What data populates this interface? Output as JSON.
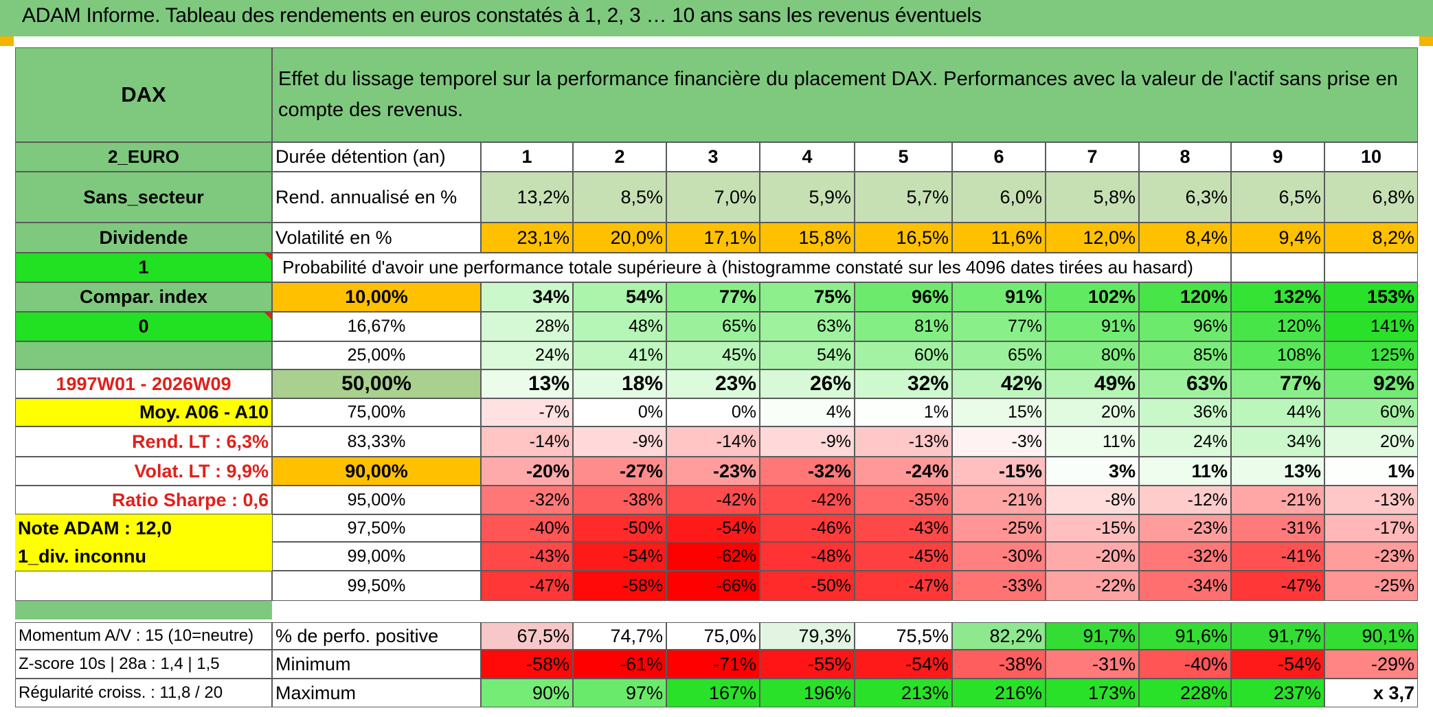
{
  "title": "ADAM Informe. Tableau des rendements en euros constatés à 1, 2, 3 … 10 ans sans les revenus éventuels",
  "description": "Effet du lissage temporel sur la performance financière du placement DAX. Performances avec la valeur de l'actif sans prise en compte des revenus.",
  "left": {
    "name": "DAX",
    "currency": "2_EURO",
    "sector": "Sans_secteur",
    "dividend_label": "Dividende",
    "dividend_flag": "1",
    "compar_label": "Compar. index",
    "compar_flag": "0",
    "period": "1997W01 - 2026W09",
    "moy": "Moy. A06 - A10",
    "rend_lt": "Rend. LT :   6,3%",
    "volat_lt": "Volat. LT :   9,9%",
    "sharpe": "Ratio Sharpe :   0,6",
    "note": "Note ADAM : 12,0",
    "div_note": "1_div. inconnu",
    "momentum": "Momentum A/V : 15 (10=neutre)",
    "zscore": "Z-score 10s | 28a : 1,4 | 1,5",
    "regularite": "Régularité croiss. : 11,8 / 20"
  },
  "header": {
    "duree_label": "Durée détention (an)",
    "years": [
      "1",
      "2",
      "3",
      "4",
      "5",
      "6",
      "7",
      "8",
      "9",
      "10"
    ],
    "rend_label": "Rend. annualisé en %",
    "rend": [
      "13,2%",
      "8,5%",
      "7,0%",
      "5,9%",
      "5,7%",
      "6,0%",
      "5,8%",
      "6,3%",
      "6,5%",
      "6,8%"
    ],
    "vol_label": "Volatilité en %",
    "vol": [
      "23,1%",
      "20,0%",
      "17,1%",
      "15,8%",
      "16,5%",
      "11,6%",
      "12,0%",
      "8,4%",
      "9,4%",
      "8,2%"
    ],
    "proba_label": "Probabilité d'avoir une performance totale supérieure à (histogramme constaté sur les 4096 dates tirées au hasard)"
  },
  "quantile_rows": [
    {
      "q": "10,00%",
      "v": [
        "34%",
        "54%",
        "77%",
        "75%",
        "96%",
        "91%",
        "102%",
        "120%",
        "132%",
        "153%"
      ]
    },
    {
      "q": "16,67%",
      "v": [
        "28%",
        "48%",
        "65%",
        "63%",
        "81%",
        "77%",
        "91%",
        "96%",
        "120%",
        "141%"
      ]
    },
    {
      "q": "25,00%",
      "v": [
        "24%",
        "41%",
        "45%",
        "54%",
        "60%",
        "65%",
        "80%",
        "85%",
        "108%",
        "125%"
      ]
    },
    {
      "q": "50,00%",
      "v": [
        "13%",
        "18%",
        "23%",
        "26%",
        "32%",
        "42%",
        "49%",
        "63%",
        "77%",
        "92%"
      ]
    },
    {
      "q": "75,00%",
      "v": [
        "-7%",
        "0%",
        "0%",
        "4%",
        "1%",
        "15%",
        "20%",
        "36%",
        "44%",
        "60%"
      ]
    },
    {
      "q": "83,33%",
      "v": [
        "-14%",
        "-9%",
        "-14%",
        "-9%",
        "-13%",
        "-3%",
        "11%",
        "24%",
        "34%",
        "20%"
      ]
    },
    {
      "q": "90,00%",
      "v": [
        "-20%",
        "-27%",
        "-23%",
        "-32%",
        "-24%",
        "-15%",
        "3%",
        "11%",
        "13%",
        "1%"
      ]
    },
    {
      "q": "95,00%",
      "v": [
        "-32%",
        "-38%",
        "-42%",
        "-42%",
        "-35%",
        "-21%",
        "-8%",
        "-12%",
        "-21%",
        "-13%"
      ]
    },
    {
      "q": "97,50%",
      "v": [
        "-40%",
        "-50%",
        "-54%",
        "-46%",
        "-43%",
        "-25%",
        "-15%",
        "-23%",
        "-31%",
        "-17%"
      ]
    },
    {
      "q": "99,00%",
      "v": [
        "-43%",
        "-54%",
        "-62%",
        "-48%",
        "-45%",
        "-30%",
        "-20%",
        "-32%",
        "-41%",
        "-23%"
      ]
    },
    {
      "q": "99,50%",
      "v": [
        "-47%",
        "-58%",
        "-66%",
        "-50%",
        "-47%",
        "-33%",
        "-22%",
        "-34%",
        "-47%",
        "-25%"
      ]
    }
  ],
  "bottom": {
    "pos_label": "% de perfo. positive",
    "pos": [
      "67,5%",
      "74,7%",
      "75,0%",
      "79,3%",
      "75,5%",
      "82,2%",
      "91,7%",
      "91,6%",
      "91,7%",
      "90,1%"
    ],
    "min_label": "Minimum",
    "min": [
      "-58%",
      "-61%",
      "-71%",
      "-55%",
      "-54%",
      "-38%",
      "-31%",
      "-40%",
      "-54%",
      "-29%"
    ],
    "max_label": "Maximum",
    "max": [
      "90%",
      "97%",
      "167%",
      "196%",
      "213%",
      "216%",
      "173%",
      "228%",
      "237%",
      "x 3,7"
    ]
  },
  "colors": {
    "banner_green": "#7ec97e",
    "bright_green": "#22e022",
    "orange": "#ffc000",
    "yellow": "#ffff00",
    "red_text": "#e0201b"
  }
}
